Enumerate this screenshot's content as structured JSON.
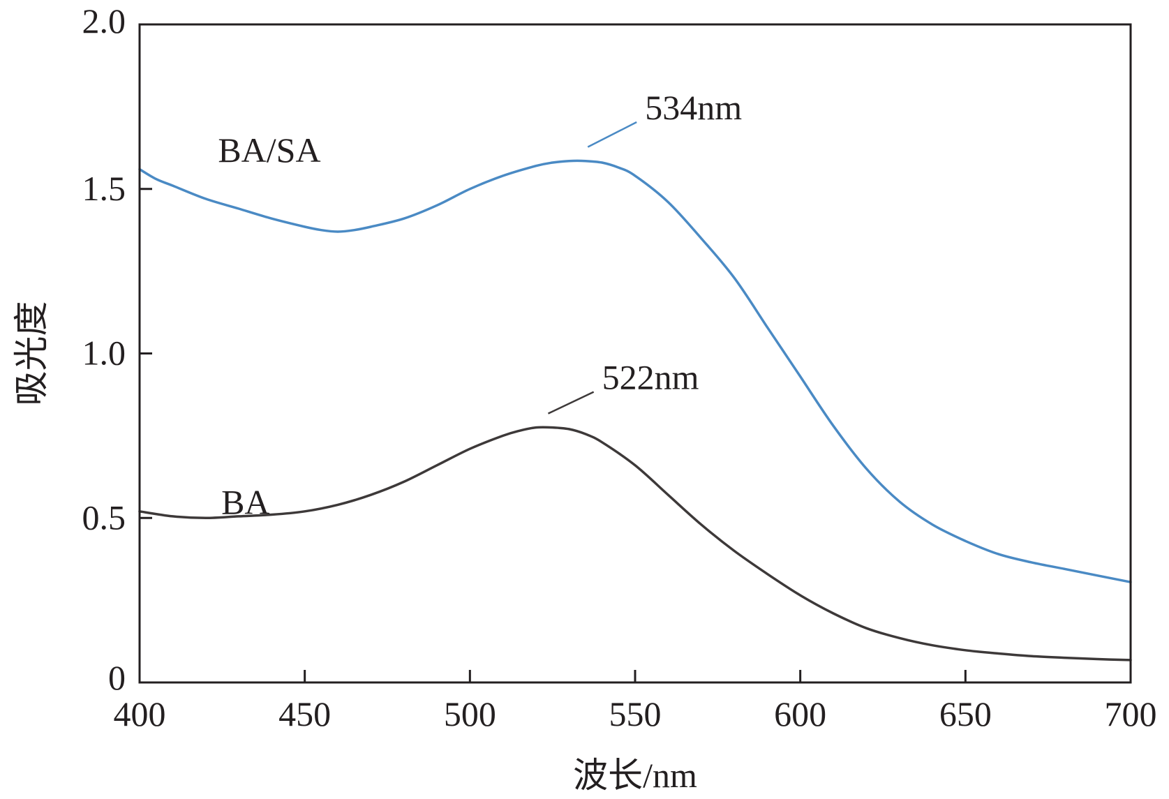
{
  "chart_data": {
    "type": "line",
    "title": "",
    "xlabel": "波长/nm",
    "ylabel": "吸光度",
    "xlim": [
      400,
      700
    ],
    "ylim": [
      0,
      2.0
    ],
    "xticks": [
      400,
      450,
      500,
      550,
      600,
      650,
      700
    ],
    "xtick_labels": [
      "400",
      "450",
      "500",
      "550",
      "600",
      "650",
      "700"
    ],
    "yticks": [
      0,
      0.5,
      1.0,
      1.5,
      2.0
    ],
    "ytick_labels": [
      "0",
      "0.5",
      "1.0",
      "1.5",
      "2.0"
    ],
    "grid": false,
    "legend": "none",
    "series": [
      {
        "name": "BA/SA",
        "color": "#4a8ac4",
        "x": [
          400,
          405,
          410,
          420,
          430,
          440,
          450,
          455,
          460,
          465,
          470,
          480,
          490,
          500,
          510,
          520,
          525,
          530,
          535,
          540,
          545,
          550,
          560,
          570,
          580,
          590,
          600,
          610,
          620,
          630,
          640,
          650,
          660,
          670,
          680,
          690,
          700
        ],
        "values": [
          1.56,
          1.53,
          1.51,
          1.47,
          1.44,
          1.41,
          1.385,
          1.375,
          1.37,
          1.375,
          1.385,
          1.41,
          1.45,
          1.5,
          1.54,
          1.57,
          1.58,
          1.585,
          1.585,
          1.58,
          1.565,
          1.54,
          1.46,
          1.35,
          1.23,
          1.08,
          0.93,
          0.78,
          0.65,
          0.55,
          0.48,
          0.43,
          0.39,
          0.365,
          0.345,
          0.325,
          0.305
        ]
      },
      {
        "name": "BA",
        "color": "#3d3939",
        "x": [
          400,
          410,
          420,
          430,
          440,
          450,
          460,
          470,
          480,
          490,
          500,
          510,
          515,
          520,
          525,
          530,
          535,
          540,
          550,
          560,
          570,
          580,
          590,
          600,
          610,
          620,
          630,
          640,
          650,
          660,
          670,
          680,
          690,
          700
        ],
        "values": [
          0.52,
          0.505,
          0.5,
          0.505,
          0.51,
          0.52,
          0.54,
          0.57,
          0.61,
          0.66,
          0.71,
          0.75,
          0.765,
          0.775,
          0.775,
          0.77,
          0.755,
          0.73,
          0.66,
          0.57,
          0.48,
          0.4,
          0.33,
          0.265,
          0.21,
          0.165,
          0.135,
          0.113,
          0.098,
          0.088,
          0.08,
          0.075,
          0.071,
          0.068
        ]
      }
    ],
    "annotations": [
      {
        "text": "BA/SA",
        "series": "BA/SA",
        "x": 410,
        "y": 1.62
      },
      {
        "text": "BA",
        "series": "BA",
        "x": 411,
        "y": 0.55
      },
      {
        "text": "534nm",
        "series": "BA/SA",
        "x": 534,
        "y": 1.585,
        "label_x": 553,
        "label_y": 1.72
      },
      {
        "text": "522nm",
        "series": "BA",
        "x": 522,
        "y": 0.775,
        "label_x": 540,
        "label_y": 0.9
      }
    ]
  }
}
